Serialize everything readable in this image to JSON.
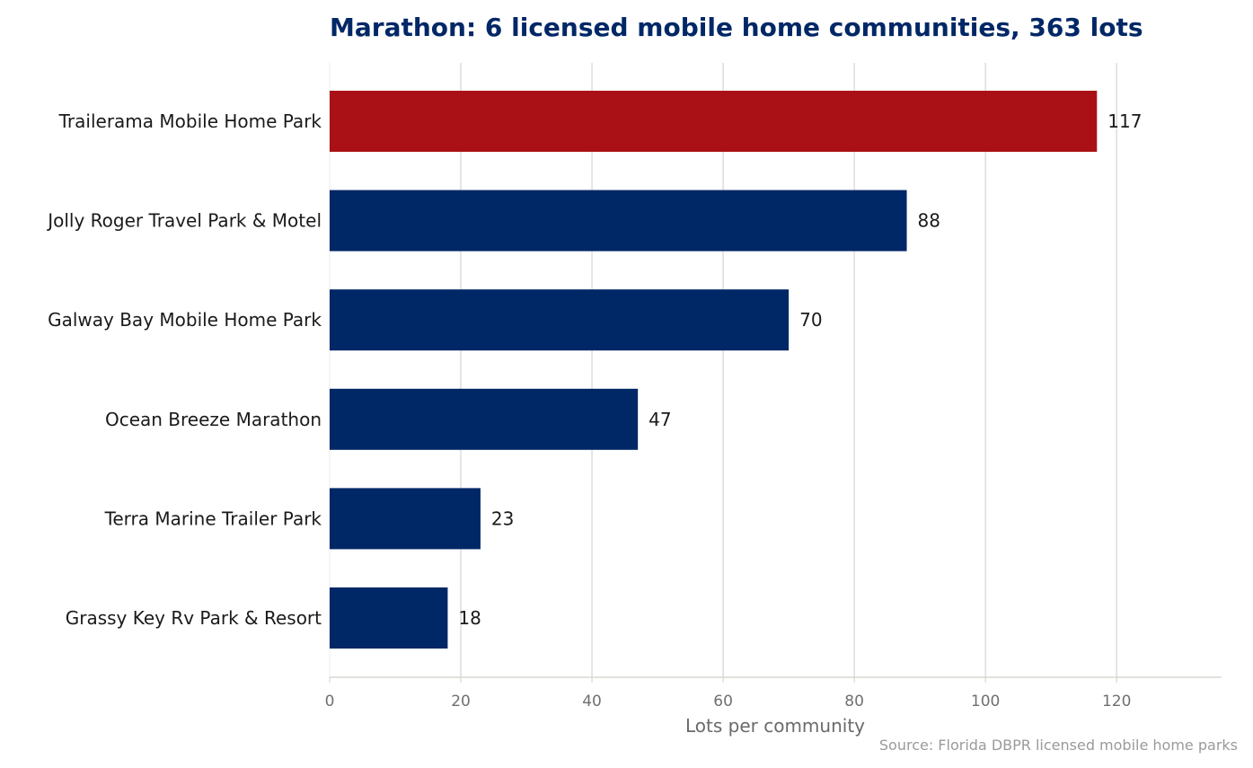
{
  "chart_data": {
    "type": "bar",
    "orientation": "horizontal",
    "title": "Marathon: 6 licensed mobile home communities, 363 lots",
    "xlabel": "Lots per community",
    "ylabel": "",
    "source": "Source: Florida DBPR licensed mobile home parks",
    "categories": [
      "Trailerama Mobile Home Park",
      "Jolly Roger Travel Park & Motel",
      "Galway Bay Mobile Home Park",
      "Ocean Breeze Marathon",
      "Terra Marine Trailer Park",
      "Grassy Key Rv Park & Resort"
    ],
    "values": [
      117,
      88,
      70,
      47,
      23,
      18
    ],
    "highlight_index": 0,
    "xlim": [
      0,
      136
    ],
    "xticks": [
      0,
      20,
      40,
      60,
      80,
      100,
      120
    ],
    "grid": "vertical",
    "colors": {
      "bar": "#002766",
      "highlight": "#aa1116",
      "title": "#002766",
      "grid": "#dddddd",
      "axis": "#d8d8d0"
    }
  }
}
